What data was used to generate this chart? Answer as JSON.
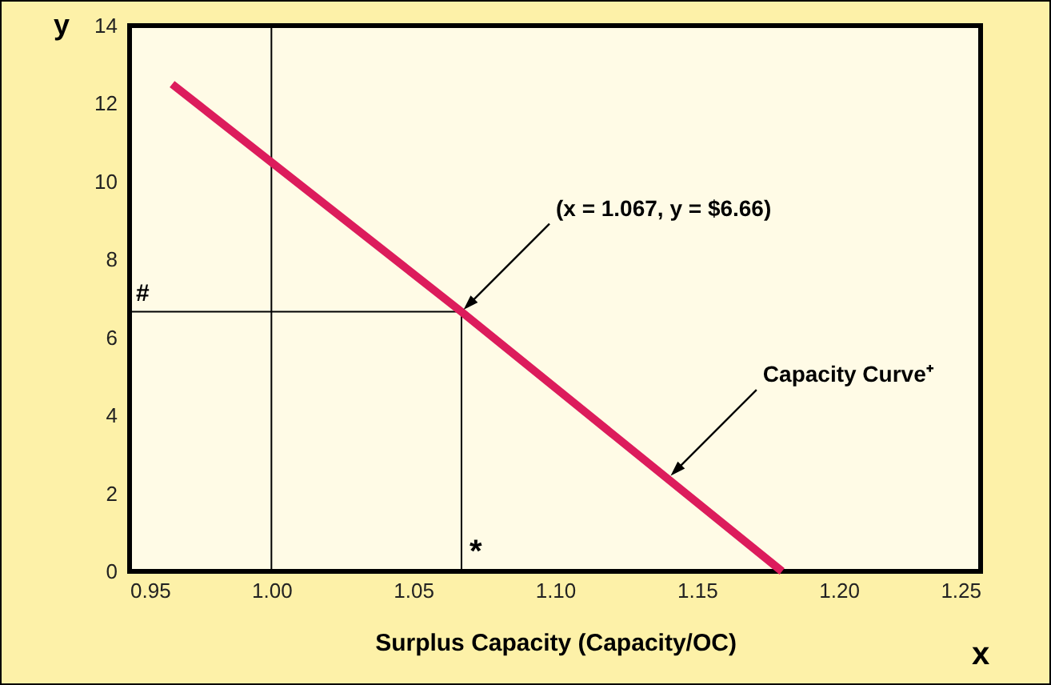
{
  "chart_data": {
    "type": "line",
    "xlabel": "Surplus Capacity (Capacity/OC)",
    "ylabel": "y",
    "x": [
      0.965,
      1.067,
      1.18
    ],
    "series": [
      {
        "color": "#dc1c5c",
        "values": [
          12.5,
          6.66,
          0
        ]
      }
    ],
    "xlim": [
      0.95,
      1.25
    ],
    "xticks": [
      {
        "value": 0.95,
        "label": "0.95"
      },
      {
        "value": 1.0,
        "label": "1.00"
      },
      {
        "value": 1.05,
        "label": "1.05"
      },
      {
        "value": 1.1,
        "label": "1.10"
      },
      {
        "value": 1.15,
        "label": "1.15"
      },
      {
        "value": 1.2,
        "label": "1.20"
      },
      {
        "value": 1.25,
        "label": "1.25"
      }
    ],
    "ylim": [
      0,
      14
    ],
    "yticks": [
      0,
      2,
      4,
      6,
      8,
      10,
      12,
      14
    ],
    "ref_lines": [
      {
        "axis": "x",
        "value": 1.0
      },
      {
        "axis": "y",
        "value": 6.66,
        "label": "#"
      },
      {
        "axis": "x",
        "value": 1.067,
        "label": "*"
      }
    ],
    "annotations": [
      {
        "text": "(x = 1.067, y = $6.66)",
        "x": 1.067,
        "y": 6.66
      },
      {
        "text": "Capacity Curve⁺",
        "x": 1.14,
        "y": 2.4
      },
      "x"
    ],
    "grid": false,
    "marker": "none",
    "line_style": "solid"
  }
}
